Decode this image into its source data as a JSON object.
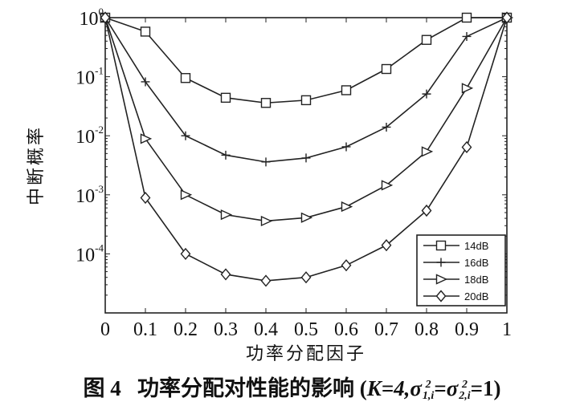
{
  "chart_data": {
    "type": "line",
    "xlabel": "功率分配因子",
    "ylabel": "中断概率",
    "x": [
      0,
      0.1,
      0.2,
      0.3,
      0.4,
      0.5,
      0.6,
      0.7,
      0.8,
      0.9,
      1
    ],
    "xticks": [
      "0",
      "0.1",
      "0.2",
      "0.3",
      "0.4",
      "0.5",
      "0.6",
      "0.7",
      "0.8",
      "0.9",
      "1"
    ],
    "yscale": "log",
    "ylim": [
      1e-05,
      1
    ],
    "yticks": [
      {
        "value": 1,
        "base": "10",
        "exp": "0"
      },
      {
        "value": 0.1,
        "base": "10",
        "exp": "-1"
      },
      {
        "value": 0.01,
        "base": "10",
        "exp": "-2"
      },
      {
        "value": 0.001,
        "base": "10",
        "exp": "-3"
      },
      {
        "value": 0.0001,
        "base": "10",
        "exp": "-4"
      }
    ],
    "xlim": [
      0,
      1
    ],
    "grid": false,
    "legend_position": "bottom-right",
    "series": [
      {
        "name": "14dB",
        "marker": "square",
        "values": [
          1,
          0.58,
          0.095,
          0.044,
          0.036,
          0.04,
          0.059,
          0.135,
          0.42,
          1,
          1
        ]
      },
      {
        "name": "16dB",
        "marker": "plus",
        "values": [
          1,
          0.082,
          0.01,
          0.0047,
          0.0036,
          0.0042,
          0.0065,
          0.014,
          0.051,
          0.48,
          1
        ]
      },
      {
        "name": "18dB",
        "marker": "triangle-right",
        "values": [
          1,
          0.0089,
          0.001,
          0.00046,
          0.00036,
          0.00041,
          0.00063,
          0.00145,
          0.0054,
          0.064,
          1
        ]
      },
      {
        "name": "20dB",
        "marker": "diamond",
        "values": [
          1,
          0.00089,
          0.0001,
          4.5e-05,
          3.5e-05,
          4e-05,
          6.4e-05,
          0.00014,
          0.00054,
          0.0064,
          1
        ]
      }
    ],
    "color": "#222222"
  },
  "caption": {
    "fig": "图 4",
    "text": "功率分配对性能的影响",
    "open": "(",
    "k": "K=4,",
    "sigma1": "σ",
    "sup1": "2",
    "sub1": "1,i",
    "eq": "=",
    "sigma2": "σ",
    "sup2": "2",
    "sub2": "2,i",
    "end": "=1)"
  }
}
